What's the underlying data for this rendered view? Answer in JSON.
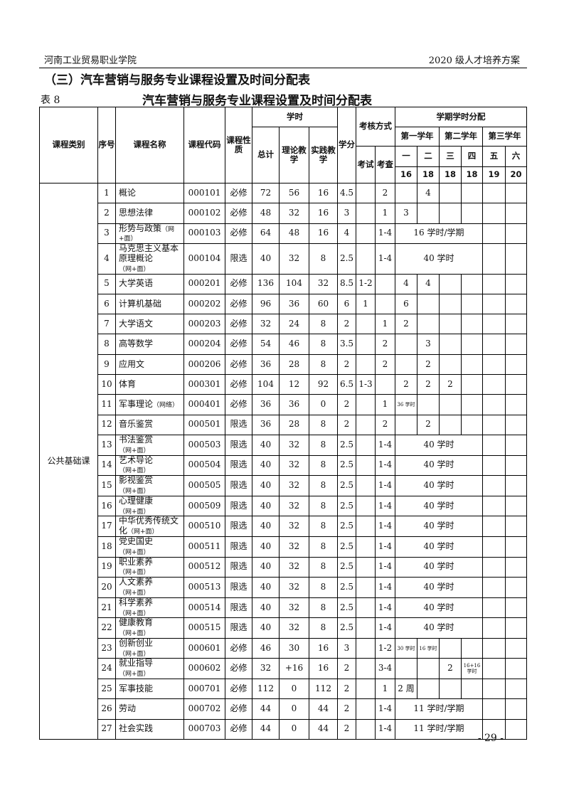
{
  "header": {
    "left": "河南工业贸易职业学院",
    "right": "2020 级人才培养方案"
  },
  "section_title": "（三）汽车营销与服务专业课程设置及时间分配表",
  "table_no": "表 8",
  "table_title": "汽车营销与服务专业课程设置及时间分配表",
  "columns": {
    "category": "课程类别",
    "seq": "序号",
    "name": "课程名称",
    "code": "课程代码",
    "nature": "课程性质",
    "hours": "学时",
    "total": "总计",
    "theory": "理论教学",
    "practice": "实践教学",
    "credit": "学分",
    "assessment": "考核方式",
    "exam": "考试",
    "check": "考查",
    "semester_dist": "学期学时分配",
    "years": [
      "第一学年",
      "第二学年",
      "第三学年"
    ],
    "semesters": [
      "一",
      "二",
      "三",
      "四",
      "五",
      "六"
    ],
    "weeks": [
      "16",
      "18",
      "18",
      "18",
      "19",
      "20"
    ]
  },
  "category": "公共基础课",
  "rows": [
    {
      "seq": "1",
      "name": "概论",
      "code": "000101",
      "nature": "必修",
      "total": "72",
      "theory": "56",
      "practice": "16",
      "credit": "4.5",
      "exam": "",
      "check": "2",
      "sems": [
        "",
        "4",
        "",
        "",
        "",
        ""
      ]
    },
    {
      "seq": "2",
      "name": "思想法律",
      "code": "000102",
      "nature": "必修",
      "total": "48",
      "theory": "32",
      "practice": "16",
      "credit": "3",
      "exam": "",
      "check": "1",
      "sems": [
        "3",
        "",
        "",
        "",
        "",
        ""
      ]
    },
    {
      "seq": "3",
      "name": "形势与政策",
      "note": "（网+面）",
      "code": "000103",
      "nature": "必修",
      "total": "64",
      "theory": "48",
      "practice": "16",
      "credit": "4",
      "exam": "",
      "check": "1-4",
      "span": "16 学时/学期"
    },
    {
      "seq": "4",
      "name": "马克思主义基本原理概论",
      "note": "（网+面）",
      "code": "000104",
      "nature": "限选",
      "total": "40",
      "theory": "32",
      "practice": "8",
      "credit": "2.5",
      "exam": "",
      "check": "1-4",
      "span": "40 学时"
    },
    {
      "seq": "5",
      "name": "大学英语",
      "code": "000201",
      "nature": "必修",
      "total": "136",
      "theory": "104",
      "practice": "32",
      "credit": "8.5",
      "exam": "1-2",
      "check": "",
      "sems": [
        "4",
        "4",
        "",
        "",
        "",
        ""
      ]
    },
    {
      "seq": "6",
      "name": "计算机基础",
      "code": "000202",
      "nature": "必修",
      "total": "96",
      "theory": "36",
      "practice": "60",
      "credit": "6",
      "exam": "1",
      "check": "",
      "sems": [
        "6",
        "",
        "",
        "",
        "",
        ""
      ]
    },
    {
      "seq": "7",
      "name": "大学语文",
      "code": "000203",
      "nature": "必修",
      "total": "32",
      "theory": "24",
      "practice": "8",
      "credit": "2",
      "exam": "",
      "check": "1",
      "sems": [
        "2",
        "",
        "",
        "",
        "",
        ""
      ]
    },
    {
      "seq": "8",
      "name": "高等数学",
      "code": "000204",
      "nature": "必修",
      "total": "54",
      "theory": "46",
      "practice": "8",
      "credit": "3.5",
      "exam": "",
      "check": "2",
      "sems": [
        "",
        "3",
        "",
        "",
        "",
        ""
      ]
    },
    {
      "seq": "9",
      "name": "应用文",
      "code": "000206",
      "nature": "必修",
      "total": "36",
      "theory": "28",
      "practice": "8",
      "credit": "2",
      "exam": "",
      "check": "2",
      "sems": [
        "",
        "2",
        "",
        "",
        "",
        ""
      ]
    },
    {
      "seq": "10",
      "name": "体育",
      "code": "000301",
      "nature": "必修",
      "total": "104",
      "theory": "12",
      "practice": "92",
      "credit": "6.5",
      "exam": "1-3",
      "check": "",
      "sems": [
        "2",
        "2",
        "2",
        "",
        "",
        ""
      ]
    },
    {
      "seq": "11",
      "name": "军事理论",
      "note": "（网络）",
      "code": "000401",
      "nature": "必修",
      "total": "36",
      "theory": "36",
      "practice": "0",
      "credit": "2",
      "exam": "",
      "check": "1",
      "sems": [
        "36 学时",
        "",
        "",
        "",
        "",
        ""
      ],
      "small": true
    },
    {
      "seq": "12",
      "name": "音乐鉴赏",
      "code": "000501",
      "nature": "限选",
      "total": "36",
      "theory": "28",
      "practice": "8",
      "credit": "2",
      "exam": "",
      "check": "2",
      "sems": [
        "",
        "2",
        "",
        "",
        "",
        ""
      ]
    },
    {
      "seq": "13",
      "name": "书法鉴赏",
      "note": "（网+面）",
      "code": "000503",
      "nature": "限选",
      "total": "40",
      "theory": "32",
      "practice": "8",
      "credit": "2.5",
      "exam": "",
      "check": "1-4",
      "span": "40 学时"
    },
    {
      "seq": "14",
      "name": "艺术导论",
      "note": "（网+面）",
      "code": "000504",
      "nature": "限选",
      "total": "40",
      "theory": "32",
      "practice": "8",
      "credit": "2.5",
      "exam": "",
      "check": "1-4",
      "span": "40 学时"
    },
    {
      "seq": "15",
      "name": "影视鉴赏",
      "note": "（网+面）",
      "code": "000505",
      "nature": "限选",
      "total": "40",
      "theory": "32",
      "practice": "8",
      "credit": "2.5",
      "exam": "",
      "check": "1-4",
      "span": "40 学时"
    },
    {
      "seq": "16",
      "name": "心理健康",
      "note": "（网+面）",
      "code": "000509",
      "nature": "限选",
      "total": "40",
      "theory": "32",
      "practice": "8",
      "credit": "2.5",
      "exam": "",
      "check": "1-4",
      "span": "40 学时"
    },
    {
      "seq": "17",
      "name": "中华优秀传统文化",
      "note": "（网+面）",
      "code": "000510",
      "nature": "限选",
      "total": "40",
      "theory": "32",
      "practice": "8",
      "credit": "2.5",
      "exam": "",
      "check": "1-4",
      "span": "40 学时"
    },
    {
      "seq": "18",
      "name": "党史国史",
      "note": "（网+面）",
      "code": "000511",
      "nature": "限选",
      "total": "40",
      "theory": "32",
      "practice": "8",
      "credit": "2.5",
      "exam": "",
      "check": "1-4",
      "span": "40 学时"
    },
    {
      "seq": "19",
      "name": "职业素养",
      "note": "（网+面）",
      "code": "000512",
      "nature": "限选",
      "total": "40",
      "theory": "32",
      "practice": "8",
      "credit": "2.5",
      "exam": "",
      "check": "1-4",
      "span": "40 学时"
    },
    {
      "seq": "20",
      "name": "人文素养",
      "note": "（网+面）",
      "code": "000513",
      "nature": "限选",
      "total": "40",
      "theory": "32",
      "practice": "8",
      "credit": "2.5",
      "exam": "",
      "check": "1-4",
      "span": "40 学时"
    },
    {
      "seq": "21",
      "name": "科学素养",
      "note": "（网+面）",
      "code": "000514",
      "nature": "限选",
      "total": "40",
      "theory": "32",
      "practice": "8",
      "credit": "2.5",
      "exam": "",
      "check": "1-4",
      "span": "40 学时"
    },
    {
      "seq": "22",
      "name": "健康教育",
      "note": "（网+面）",
      "code": "000515",
      "nature": "限选",
      "total": "40",
      "theory": "32",
      "practice": "8",
      "credit": "2.5",
      "exam": "",
      "check": "1-4",
      "span": "40 学时"
    },
    {
      "seq": "23",
      "name": "创新创业",
      "note": "（网+面）",
      "code": "000601",
      "nature": "必修",
      "total": "46",
      "theory": "30",
      "practice": "16",
      "credit": "3",
      "exam": "",
      "check": "1-2",
      "sems": [
        "30 学时",
        "16 学时",
        "",
        "",
        "",
        ""
      ],
      "small": true
    },
    {
      "seq": "24",
      "name": "就业指导",
      "note": "（网+面）",
      "code": "000602",
      "nature": "必修",
      "total": "32",
      "theory": "+16",
      "practice": "16",
      "credit": "2",
      "exam": "",
      "check": "3-4",
      "sems": [
        "",
        "",
        "2",
        "16+16 学时",
        "",
        ""
      ],
      "small": true
    },
    {
      "seq": "25",
      "name": "军事技能",
      "code": "000701",
      "nature": "必修",
      "total": "112",
      "theory": "0",
      "practice": "112",
      "credit": "2",
      "exam": "",
      "check": "1",
      "sems": [
        "2 周",
        "",
        "",
        "",
        "",
        ""
      ]
    },
    {
      "seq": "26",
      "name": "劳动",
      "code": "000702",
      "nature": "必修",
      "total": "44",
      "theory": "0",
      "practice": "44",
      "credit": "2",
      "exam": "",
      "check": "1-4",
      "span": "11 学时/学期"
    },
    {
      "seq": "27",
      "name": "社会实践",
      "code": "000703",
      "nature": "必修",
      "total": "44",
      "theory": "0",
      "practice": "44",
      "credit": "2",
      "exam": "",
      "check": "1-4",
      "span": "11 学时/学期"
    }
  ],
  "page_number": "- 29 -"
}
